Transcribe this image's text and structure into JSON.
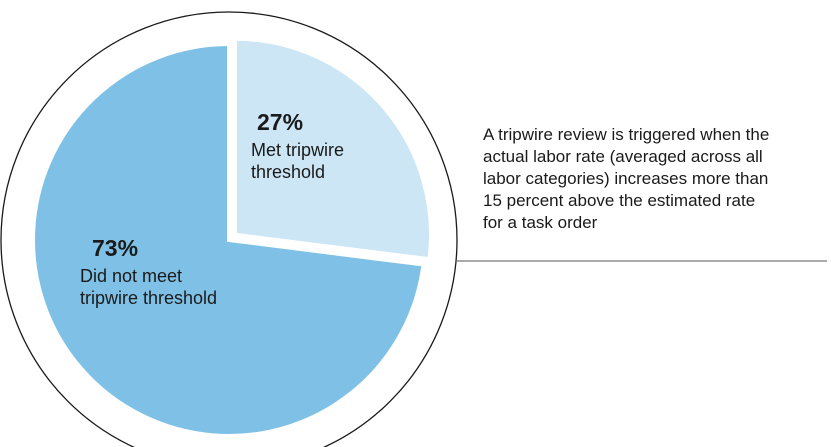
{
  "chart_data": {
    "type": "pie",
    "slices": [
      {
        "value": 27,
        "percent_label": "27%",
        "label_lines": [
          "Met tripwire",
          "threshold"
        ],
        "color": "#cce6f5",
        "exploded": true
      },
      {
        "value": 73,
        "percent_label": "73%",
        "label_lines": [
          "Did not meet",
          "tripwire threshold"
        ],
        "color": "#7fc1e6",
        "exploded": false
      }
    ],
    "outline_color": "#1a1a1a",
    "annotation": {
      "lines": [
        "A tripwire review is triggered when the",
        "actual labor rate (averaged across all",
        "labor categories) increases more than",
        "15 percent above the estimated rate",
        "for a task order"
      ],
      "leader_color": "#555555"
    }
  }
}
